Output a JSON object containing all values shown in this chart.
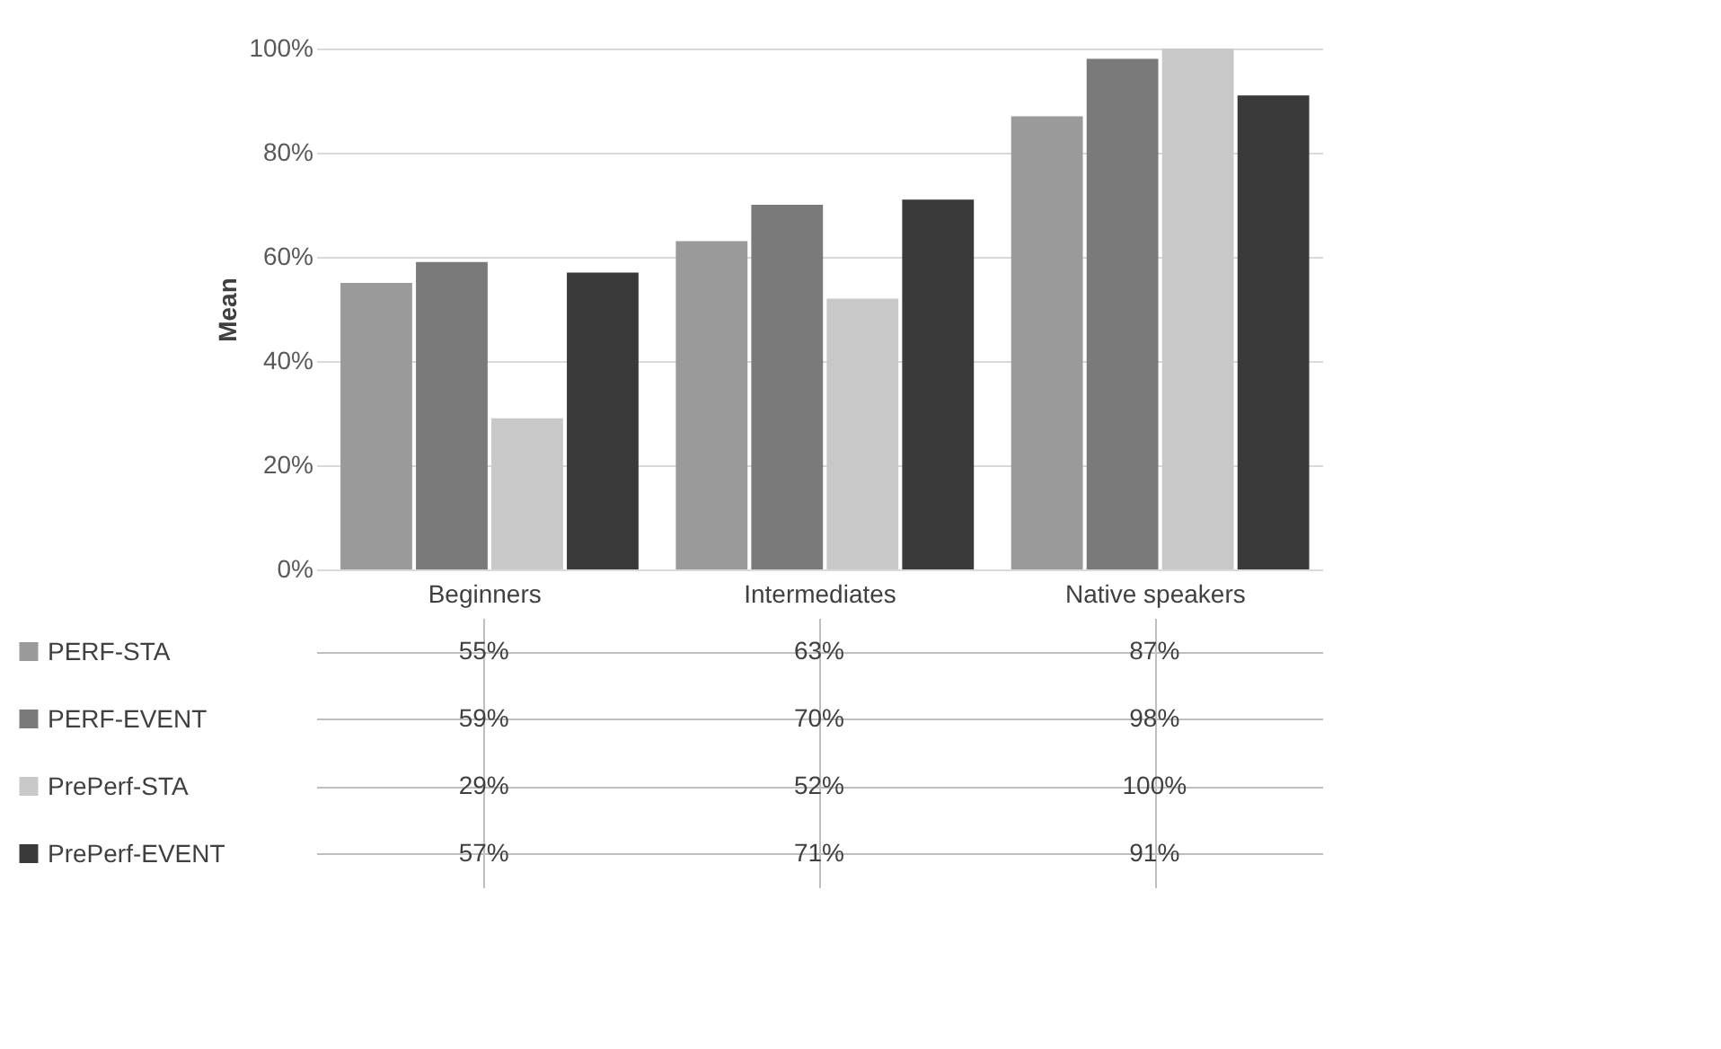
{
  "chart_data": {
    "type": "bar",
    "ylabel": "Mean",
    "categories": [
      "Beginners",
      "Intermediates",
      "Native speakers"
    ],
    "series": [
      {
        "name": "PERF-STA",
        "color": "#9a9a9a",
        "values": [
          55,
          63,
          87
        ],
        "value_labels": [
          "55%",
          "63%",
          "87%"
        ]
      },
      {
        "name": "PERF-EVENT",
        "color": "#7a7a7a",
        "values": [
          59,
          70,
          98
        ],
        "value_labels": [
          "59%",
          "70%",
          "98%"
        ]
      },
      {
        "name": "PrePerf-STA",
        "color": "#c8c8c8",
        "values": [
          29,
          52,
          100
        ],
        "value_labels": [
          "29%",
          "52%",
          "100%"
        ]
      },
      {
        "name": "PrePerf-EVENT",
        "color": "#3a3a3a",
        "values": [
          57,
          71,
          91
        ],
        "value_labels": [
          "57%",
          "71%",
          "91%"
        ]
      }
    ],
    "ylim": [
      0,
      100
    ],
    "yticks": [
      {
        "value": 0,
        "label": "0%"
      },
      {
        "value": 20,
        "label": "20%"
      },
      {
        "value": 40,
        "label": "40%"
      },
      {
        "value": 60,
        "label": "60%"
      },
      {
        "value": 80,
        "label": "80%"
      },
      {
        "value": 100,
        "label": "100%"
      }
    ],
    "grid": "y",
    "legend": "bottom"
  }
}
